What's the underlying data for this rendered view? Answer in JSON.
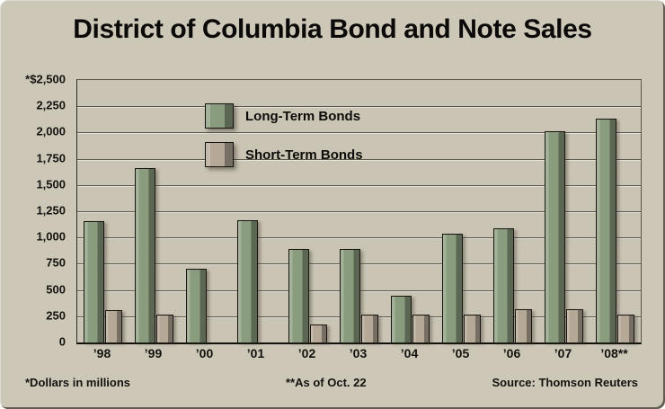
{
  "title": "District of Columbia Bond and Note Sales",
  "footnotes": {
    "dollars_note": "*Dollars in millions",
    "date_note": "**As of Oct. 22",
    "source": "Source: Thomson Reuters"
  },
  "colors": {
    "background": "#cdc7b8",
    "long_term_bar": "#8a9c7e",
    "short_term_bar": "#b5a896",
    "gridline": "#5b5548",
    "text": "#14120e"
  },
  "chart_data": {
    "type": "bar",
    "title": "District of Columbia Bond and Note Sales",
    "units": "Dollars in millions",
    "categories": [
      "’98",
      "’99",
      "’00",
      "’01",
      "’02",
      "’03",
      "’04",
      "’05",
      "’06",
      "’07",
      "’08**"
    ],
    "series": [
      {
        "name": "Long-Term Bonds",
        "color": "#8a9c7e",
        "values": [
          1150,
          1650,
          690,
          1160,
          880,
          880,
          440,
          1030,
          1080,
          2000,
          2120
        ]
      },
      {
        "name": "Short-Term Bonds",
        "color": "#b5a896",
        "values": [
          300,
          260,
          0,
          0,
          160,
          260,
          260,
          260,
          310,
          310,
          260
        ]
      }
    ],
    "ylim": [
      0,
      2500
    ],
    "yticks": [
      {
        "label": "*$2,500",
        "value": 2500
      },
      {
        "label": "2,250",
        "value": 2250
      },
      {
        "label": "2,000",
        "value": 2000
      },
      {
        "label": "1,750",
        "value": 1750
      },
      {
        "label": "1,500",
        "value": 1500
      },
      {
        "label": "1,250",
        "value": 1250
      },
      {
        "label": "1,000",
        "value": 1000
      },
      {
        "label": "750",
        "value": 750
      },
      {
        "label": "500",
        "value": 500
      },
      {
        "label": "250",
        "value": 250
      },
      {
        "label": "0",
        "value": 0
      }
    ],
    "grid": true,
    "legend_position": "upper-left-inside"
  }
}
